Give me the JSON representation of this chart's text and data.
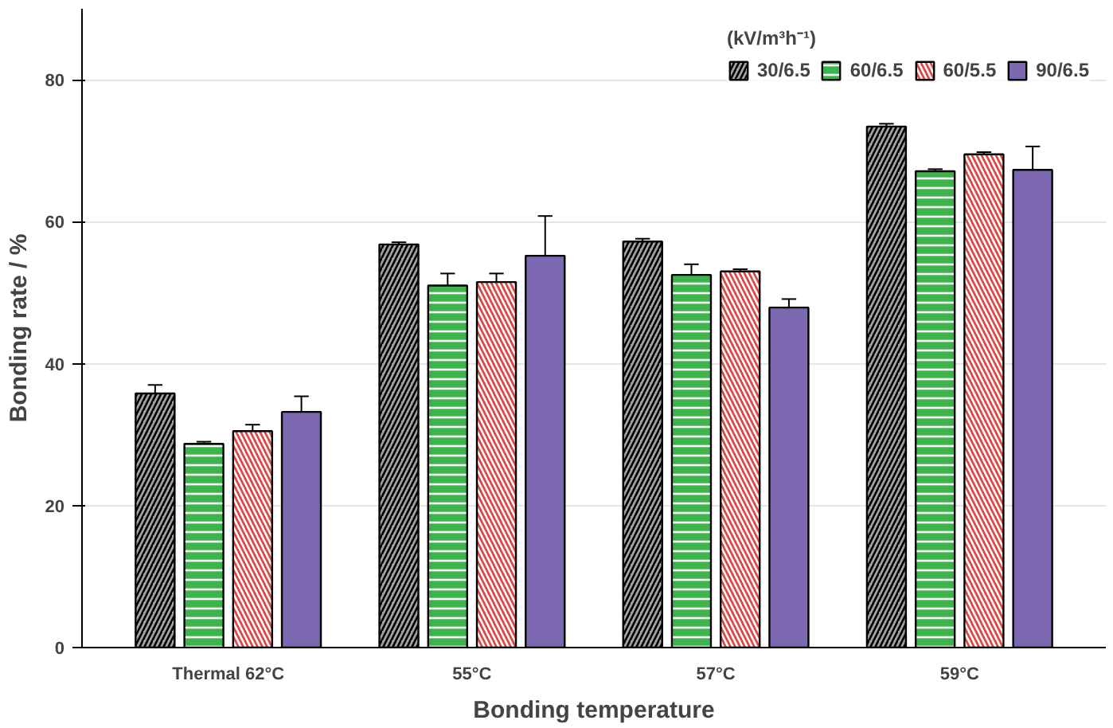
{
  "chart_data": {
    "type": "bar",
    "xlabel": "Bonding temperature",
    "ylabel": "Bonding rate / %",
    "categories": [
      "Thermal 62°C",
      "55°C",
      "57°C",
      "59°C"
    ],
    "series": [
      {
        "name": "30/6.5",
        "color": "#a0a0a0",
        "values": [
          35.8,
          56.8,
          57.2,
          73.4
        ],
        "errors": [
          1.2,
          0.3,
          0.4,
          0.4
        ]
      },
      {
        "name": "60/6.5",
        "color": "#3cb44b",
        "values": [
          28.7,
          51.0,
          52.5,
          67.1
        ],
        "errors": [
          0.3,
          1.7,
          1.5,
          0.3
        ]
      },
      {
        "name": "60/5.5",
        "color": "#e04848",
        "values": [
          30.5,
          51.5,
          53.0,
          69.5
        ],
        "errors": [
          0.9,
          1.2,
          0.3,
          0.3
        ]
      },
      {
        "name": "90/6.5",
        "color": "#7b68b0",
        "values": [
          33.2,
          55.2,
          47.9,
          67.3
        ],
        "errors": [
          2.2,
          5.6,
          1.2,
          3.3
        ]
      }
    ],
    "legend_title": "(kV/m³h⁻¹)",
    "legend": "top right",
    "ylim": [
      0,
      90
    ],
    "yticks": [
      0,
      20,
      40,
      60,
      80
    ],
    "grid": "y"
  }
}
